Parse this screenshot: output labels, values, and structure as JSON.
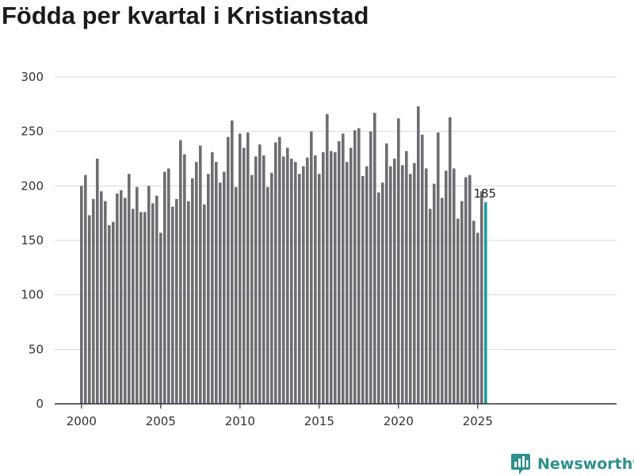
{
  "colors": {
    "bar": "#6d6d72",
    "highlight": "#1a9e96",
    "grid": "#d9d9d9",
    "axis": "#333333",
    "brand": "#2f8f8c"
  },
  "brand": {
    "name": "Newsworthy",
    "icon": "newsworthy-logo-icon"
  },
  "chart_data": {
    "type": "bar",
    "title": "Födda per kvartal i Kristianstad",
    "xlabel": "",
    "ylabel": "",
    "ylim": [
      0,
      300
    ],
    "yticks": [
      "0",
      "50",
      "100",
      "150",
      "200",
      "250",
      "300"
    ],
    "xticks": [
      "2000",
      "2005",
      "2010",
      "2015",
      "2020",
      "2025"
    ],
    "series": [
      {
        "name": "Födda",
        "values": [
          200,
          210,
          173,
          188,
          225,
          195,
          186,
          164,
          167,
          193,
          196,
          189,
          211,
          179,
          199,
          176,
          176,
          200,
          184,
          191,
          157,
          213,
          216,
          181,
          188,
          242,
          229,
          186,
          207,
          222,
          237,
          183,
          211,
          231,
          222,
          203,
          213,
          245,
          260,
          199,
          248,
          235,
          249,
          210,
          227,
          238,
          228,
          199,
          212,
          240,
          245,
          227,
          235,
          225,
          222,
          211,
          218,
          226,
          250,
          228,
          211,
          231,
          266,
          232,
          231,
          241,
          248,
          222,
          235,
          251,
          253,
          209,
          218,
          250,
          267,
          194,
          203,
          239,
          218,
          225,
          262,
          219,
          232,
          211,
          221,
          273,
          247,
          216,
          179,
          202,
          249,
          189,
          214,
          263,
          216,
          170,
          186,
          208,
          210,
          168,
          157,
          195,
          185
        ]
      }
    ],
    "start": "2000 Q1",
    "last_label": "185"
  }
}
